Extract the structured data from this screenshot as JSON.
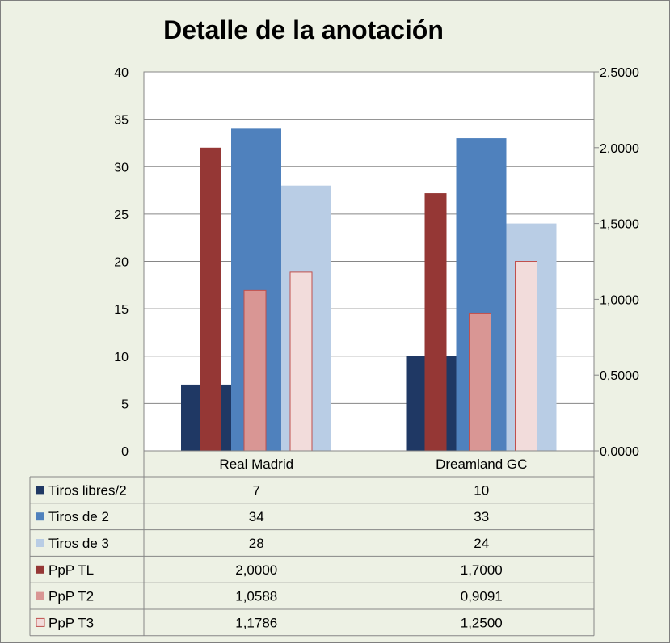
{
  "chart_data": {
    "type": "bar",
    "title": "Detalle de la anotación",
    "categories": [
      "Real Madrid",
      "Dreamland GC"
    ],
    "primary_axis": {
      "ylim": [
        0,
        40
      ],
      "ticks": [
        "0",
        "5",
        "10",
        "15",
        "20",
        "25",
        "30",
        "35",
        "40"
      ]
    },
    "secondary_axis": {
      "ylim": [
        0,
        2.5
      ],
      "ticks": [
        "0,0000",
        "0,5000",
        "1,0000",
        "1,5000",
        "2,0000",
        "2,5000"
      ]
    },
    "grid": true,
    "legend": "data-table",
    "series": [
      {
        "name": "Tiros libres/2",
        "axis": "primary",
        "color": "#1f3864",
        "values": [
          7,
          10
        ],
        "labels": [
          "7",
          "10"
        ]
      },
      {
        "name": "Tiros de 2",
        "axis": "primary",
        "color": "#4f81bd",
        "values": [
          34,
          33
        ],
        "labels": [
          "34",
          "33"
        ]
      },
      {
        "name": "Tiros de 3",
        "axis": "primary",
        "color": "#b9cde5",
        "values": [
          28,
          24
        ],
        "labels": [
          "28",
          "24"
        ]
      },
      {
        "name": "PpP TL",
        "axis": "secondary",
        "color": "#953735",
        "values": [
          2.0,
          1.7
        ],
        "labels": [
          "2,0000",
          "1,7000"
        ]
      },
      {
        "name": "PpP T2",
        "axis": "secondary",
        "color": "#d99694",
        "values": [
          1.0588,
          0.9091
        ],
        "labels": [
          "1,0588",
          "0,9091"
        ]
      },
      {
        "name": "PpP T3",
        "axis": "secondary",
        "color": "#f2dcdb",
        "values": [
          1.1786,
          1.25
        ],
        "labels": [
          "1,1786",
          "1,2500"
        ]
      }
    ]
  }
}
